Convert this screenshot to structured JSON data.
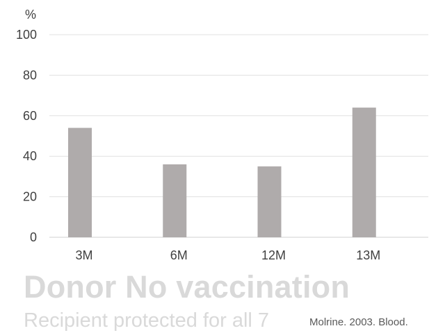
{
  "chart_data": {
    "type": "bar",
    "categories": [
      "3M",
      "6M",
      "12M",
      "13M"
    ],
    "values": [
      54,
      36,
      35,
      64
    ],
    "ylabel": "%",
    "ylim": [
      0,
      100
    ],
    "yticks": [
      0,
      20,
      40,
      60,
      80,
      100
    ],
    "grid": true,
    "bar_color": "#afabab",
    "grid_color": "#e0e0e0"
  },
  "caption": {
    "title": "Donor No vaccination",
    "subtitle": "Recipient protected for all 7",
    "source": "Molrine. 2003. Blood."
  }
}
